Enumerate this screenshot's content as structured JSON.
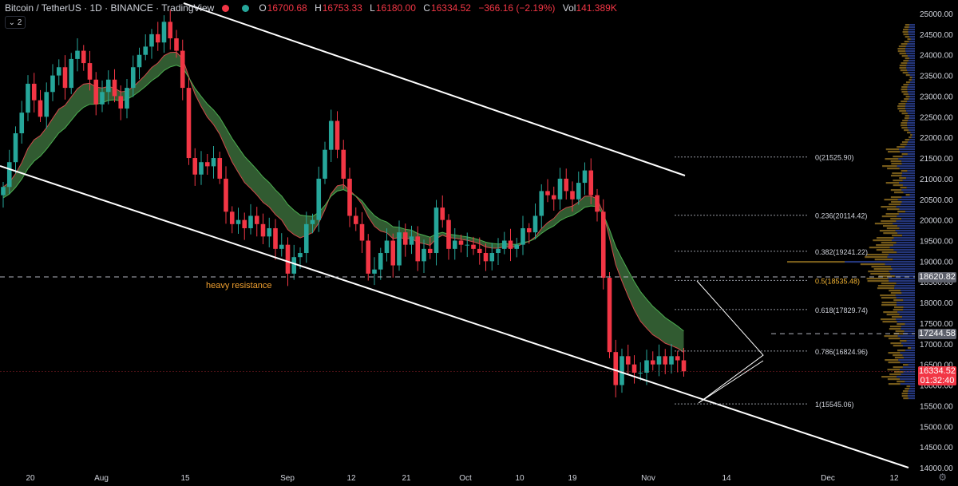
{
  "header": {
    "title": "Bitcoin / TetherUS · 1D · BINANCE · TradingView",
    "o_label": "O",
    "o_value": "16700.68",
    "h_label": "H",
    "h_value": "16753.33",
    "l_label": "L",
    "l_value": "16180.00",
    "c_label": "C",
    "c_value": "16334.52",
    "change": "−366.16 (−2.19%)",
    "vol_label": "Vol",
    "vol_value": "141.389K",
    "collapse_label": "⌄ 2"
  },
  "price_axis": {
    "ticks": [
      "25000.00",
      "24500.00",
      "24000.00",
      "23500.00",
      "23000.00",
      "22500.00",
      "22000.00",
      "21500.00",
      "21000.00",
      "20500.00",
      "20000.00",
      "19500.00",
      "19000.00",
      "18500.00",
      "18000.00",
      "17500.00",
      "17000.00",
      "16500.00",
      "16000.00",
      "15500.00",
      "15000.00",
      "14500.00",
      "14000.00"
    ],
    "tag_resistance": "18620.82",
    "tag_level": "17244.58",
    "tag_current": "16334.52",
    "tag_countdown": "01:32:40"
  },
  "date_axis": {
    "ticks": [
      "20",
      "Aug",
      "15",
      "Sep",
      "12",
      "21",
      "Oct",
      "10",
      "19",
      "Nov",
      "14",
      "Dec",
      "12"
    ]
  },
  "annotations": {
    "heavy_resistance": "heavy resistance"
  },
  "fib_levels": [
    {
      "label": "0(21525.90)",
      "price": 21525.9
    },
    {
      "label": "0.236(20114.42)",
      "price": 20114.42
    },
    {
      "label": "0.382(19241.22)",
      "price": 19241.22
    },
    {
      "label": "0.5(18535.48)",
      "price": 18535.48
    },
    {
      "label": "0.618(17829.74)",
      "price": 17829.74
    },
    {
      "label": "0.786(16824.96)",
      "price": 16824.96
    },
    {
      "label": "1(15545.06)",
      "price": 15545.06
    }
  ],
  "colors": {
    "up": "#26a69a",
    "down": "#f23645",
    "fib_orange": "#f0b232",
    "ribbon": "#3a6b3a",
    "text": "#d1d4dc",
    "price_tag_gray": "#5d606b",
    "price_tag_red": "#f23645"
  },
  "chart_data": {
    "type": "candlestick",
    "symbol": "Bitcoin / TetherUS",
    "timeframe": "1D",
    "ylim": [
      14000,
      25000
    ],
    "closes": [
      20800,
      21400,
      22100,
      22600,
      23300,
      22900,
      22500,
      23100,
      23500,
      23700,
      23200,
      23900,
      24100,
      23800,
      23400,
      22800,
      23100,
      23400,
      23000,
      22700,
      23200,
      23700,
      24000,
      24200,
      24500,
      24300,
      24800,
      24400,
      24100,
      23200,
      21500,
      21100,
      21400,
      21300,
      21500,
      21000,
      20200,
      19900,
      20000,
      19800,
      20100,
      19900,
      19600,
      19800,
      19300,
      19400,
      18700,
      19100,
      19200,
      19900,
      20000,
      21000,
      21700,
      22400,
      21700,
      21000,
      20100,
      19900,
      19500,
      18700,
      18800,
      19200,
      19500,
      18900,
      19700,
      19400,
      19600,
      19000,
      19300,
      19200,
      20300,
      20000,
      19300,
      19500,
      19400,
      19400,
      19300,
      19200,
      19000,
      19200,
      19300,
      19500,
      19300,
      19400,
      19800,
      19700,
      20100,
      20700,
      20600,
      20500,
      21000,
      20700,
      20500,
      20900,
      21200,
      20600,
      20200,
      18600,
      16800,
      16000,
      16700,
      16500,
      16300,
      16300,
      16600,
      16500,
      16700,
      16500,
      16700,
      16600,
      16334
    ],
    "fib_range": [
      15545.06,
      21525.9
    ]
  }
}
